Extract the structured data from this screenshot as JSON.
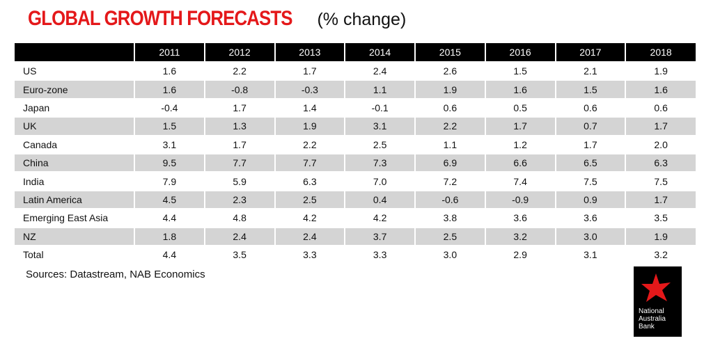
{
  "title": {
    "main": "GLOBAL GROWTH FORECASTS",
    "sub": "(% change)"
  },
  "table": {
    "columns": [
      "",
      "2011",
      "2012",
      "2013",
      "2014",
      "2015",
      "2016",
      "2017",
      "2018"
    ],
    "rows": [
      {
        "label": "US",
        "values": [
          "1.6",
          "2.2",
          "1.7",
          "2.4",
          "2.6",
          "1.5",
          "2.1",
          "1.9"
        ]
      },
      {
        "label": "Euro-zone",
        "values": [
          "1.6",
          "-0.8",
          "-0.3",
          "1.1",
          "1.9",
          "1.6",
          "1.5",
          "1.6"
        ]
      },
      {
        "label": "Japan",
        "values": [
          "-0.4",
          "1.7",
          "1.4",
          "-0.1",
          "0.6",
          "0.5",
          "0.6",
          "0.6"
        ]
      },
      {
        "label": "UK",
        "values": [
          "1.5",
          "1.3",
          "1.9",
          "3.1",
          "2.2",
          "1.7",
          "0.7",
          "1.7"
        ]
      },
      {
        "label": "Canada",
        "values": [
          "3.1",
          "1.7",
          "2.2",
          "2.5",
          "1.1",
          "1.2",
          "1.7",
          "2.0"
        ]
      },
      {
        "label": "China",
        "values": [
          "9.5",
          "7.7",
          "7.7",
          "7.3",
          "6.9",
          "6.6",
          "6.5",
          "6.3"
        ]
      },
      {
        "label": "India",
        "values": [
          "7.9",
          "5.9",
          "6.3",
          "7.0",
          "7.2",
          "7.4",
          "7.5",
          "7.5"
        ]
      },
      {
        "label": "Latin America",
        "values": [
          "4.5",
          "2.3",
          "2.5",
          "0.4",
          "-0.6",
          "-0.9",
          "0.9",
          "1.7"
        ]
      },
      {
        "label": "Emerging East Asia",
        "values": [
          "4.4",
          "4.8",
          "4.2",
          "4.2",
          "3.8",
          "3.6",
          "3.6",
          "3.5"
        ]
      },
      {
        "label": "NZ",
        "values": [
          "1.8",
          "2.4",
          "2.4",
          "3.7",
          "2.5",
          "3.2",
          "3.0",
          "1.9"
        ]
      },
      {
        "label": "Total",
        "values": [
          "4.4",
          "3.5",
          "3.3",
          "3.3",
          "3.0",
          "2.9",
          "3.1",
          "3.2"
        ]
      }
    ]
  },
  "sources": "Sources: Datastream, NAB Economics",
  "logo": {
    "icon": "nab-star-icon",
    "lines": [
      "National",
      "Australia",
      "Bank"
    ],
    "star_color": "#e4181a",
    "background": "#000000"
  },
  "colors": {
    "title_red": "#e4181a",
    "header_bg": "#000000",
    "shaded_row": "#d4d4d4"
  }
}
